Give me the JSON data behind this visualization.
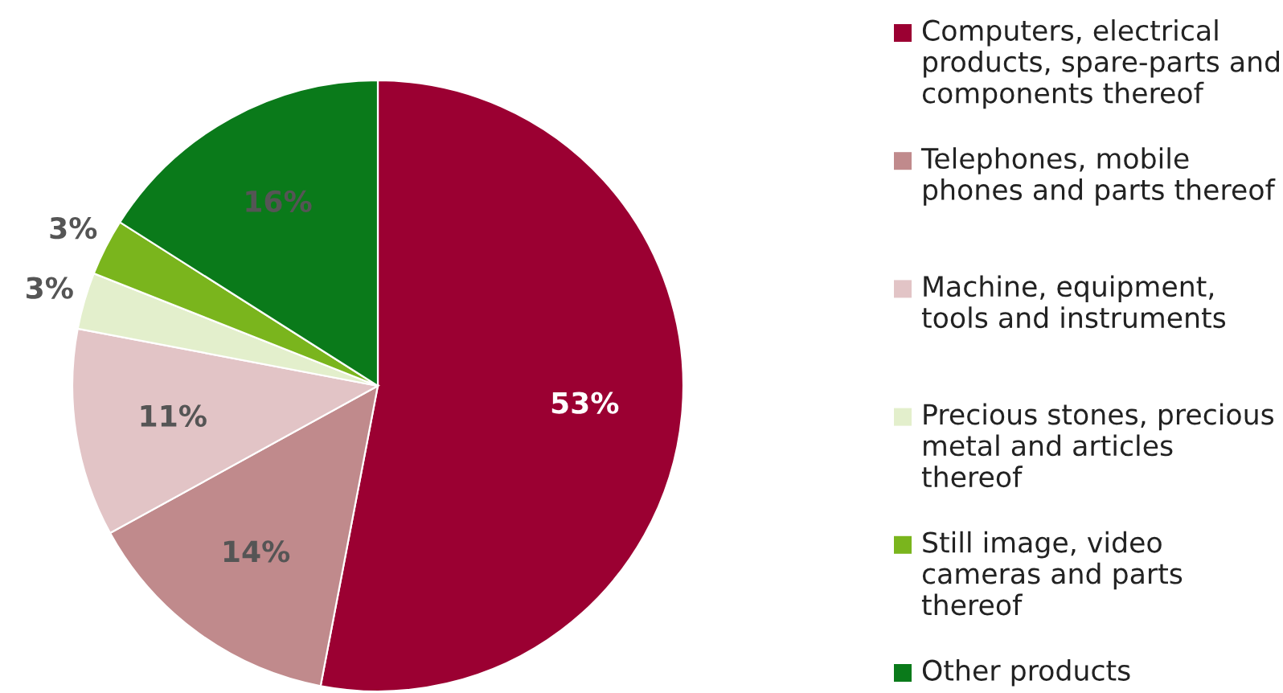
{
  "chart_data": {
    "type": "pie",
    "categories": [
      "Computers, electrical products, spare-parts and components thereof",
      "Telephones, mobile phones and parts thereof",
      "Machine, equipment, tools and instruments",
      "Precious stones, precious metal and articles thereof",
      "Still image, video cameras and parts thereof",
      "Other products"
    ],
    "values": [
      53,
      14,
      11,
      3,
      3,
      16
    ],
    "colors": [
      "#9b0032",
      "#c08a8c",
      "#e2c4c6",
      "#e3efcc",
      "#7ab51d",
      "#0a7a1a"
    ],
    "value_labels": [
      "53%",
      "14%",
      "11%",
      "3%",
      "3%",
      "16%"
    ],
    "legend": "right"
  }
}
